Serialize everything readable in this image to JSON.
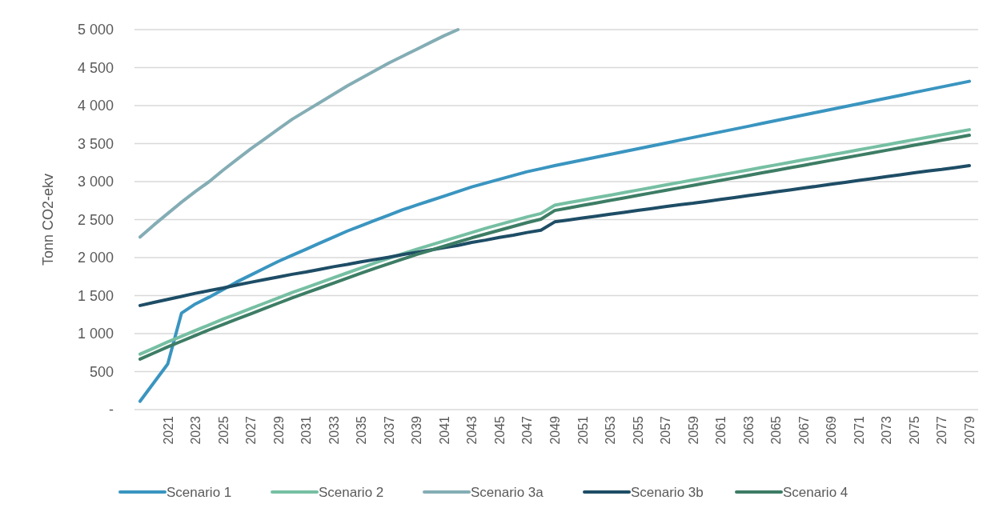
{
  "chart_data": {
    "type": "line",
    "ylabel": "Tonn CO2-ekv",
    "categories": [
      null,
      null,
      "2021",
      null,
      "2023",
      null,
      "2025",
      null,
      "2027",
      null,
      "2029",
      null,
      "2031",
      null,
      "2033",
      null,
      "2035",
      null,
      "2037",
      null,
      "2039",
      null,
      "2041",
      null,
      "2043",
      null,
      "2045",
      null,
      "2047",
      null,
      "2049",
      null,
      "2051",
      null,
      "2053",
      null,
      "2055",
      null,
      "2057",
      null,
      "2059",
      null,
      "2061",
      null,
      "2063",
      null,
      "2065",
      null,
      "2067",
      null,
      "2069",
      null,
      "2071",
      null,
      "2073",
      null,
      "2075",
      null,
      "2077",
      null,
      "2079"
    ],
    "series": [
      {
        "name": "Scenario 1",
        "color": "#3a95c0",
        "values": [
          110,
          355,
          600,
          1270,
          1390,
          1480,
          1580,
          1680,
          1770,
          1860,
          1950,
          2030,
          2110,
          2190,
          2270,
          2350,
          2420,
          2490,
          2560,
          2630,
          2690,
          2750,
          2810,
          2870,
          2930,
          2980,
          3030,
          3080,
          3130,
          3170,
          3210,
          3247,
          3284,
          3321,
          3358,
          3395,
          3432,
          3469,
          3506,
          3543,
          3580,
          3617,
          3654,
          3691,
          3728,
          3765,
          3802,
          3839,
          3876,
          3913,
          3950,
          3987,
          4024,
          4061,
          4098,
          4135,
          4172,
          4209,
          4246,
          4283,
          4320
        ]
      },
      {
        "name": "Scenario 2",
        "color": "#76bfa3",
        "values": [
          730,
          810,
          890,
          965,
          1040,
          1115,
          1190,
          1260,
          1330,
          1400,
          1470,
          1540,
          1605,
          1670,
          1735,
          1800,
          1865,
          1930,
          1990,
          2050,
          2110,
          2165,
          2220,
          2275,
          2330,
          2385,
          2435,
          2485,
          2535,
          2580,
          2690,
          2723,
          2756,
          2789,
          2822,
          2855,
          2888,
          2922,
          2955,
          2988,
          3021,
          3054,
          3087,
          3120,
          3153,
          3186,
          3220,
          3253,
          3286,
          3319,
          3352,
          3385,
          3418,
          3451,
          3484,
          3518,
          3551,
          3584,
          3617,
          3650,
          3683
        ]
      },
      {
        "name": "Scenario 3a",
        "color": "#84adb5",
        "values": [
          2270,
          2430,
          2580,
          2730,
          2870,
          3000,
          3150,
          3290,
          3430,
          3560,
          3690,
          3820,
          3930,
          4040,
          4150,
          4260,
          4360,
          4460,
          4560,
          4650,
          4740,
          4830,
          4920,
          5000,
          null,
          null,
          null,
          null,
          null,
          null,
          null,
          null,
          null,
          null,
          null,
          null,
          null,
          null,
          null,
          null,
          null,
          null,
          null,
          null,
          null,
          null,
          null,
          null,
          null,
          null,
          null,
          null,
          null,
          null,
          null,
          null,
          null,
          null,
          null,
          null,
          null
        ]
      },
      {
        "name": "Scenario 3b",
        "color": "#1e4d66",
        "values": [
          1370,
          1410,
          1450,
          1490,
          1530,
          1565,
          1600,
          1640,
          1675,
          1710,
          1745,
          1780,
          1810,
          1845,
          1880,
          1910,
          1945,
          1975,
          2005,
          2040,
          2070,
          2100,
          2130,
          2160,
          2200,
          2230,
          2265,
          2295,
          2330,
          2360,
          2470,
          2495,
          2520,
          2545,
          2570,
          2595,
          2620,
          2645,
          2670,
          2695,
          2715,
          2740,
          2765,
          2790,
          2815,
          2840,
          2865,
          2890,
          2915,
          2940,
          2965,
          2990,
          3015,
          3040,
          3065,
          3090,
          3115,
          3140,
          3160,
          3185,
          3210
        ]
      },
      {
        "name": "Scenario 4",
        "color": "#3d7d65",
        "values": [
          665,
          745,
          825,
          900,
          975,
          1050,
          1120,
          1190,
          1260,
          1330,
          1400,
          1470,
          1535,
          1600,
          1665,
          1730,
          1795,
          1860,
          1920,
          1980,
          2040,
          2095,
          2150,
          2205,
          2260,
          2310,
          2360,
          2410,
          2460,
          2505,
          2620,
          2653,
          2686,
          2719,
          2752,
          2785,
          2818,
          2851,
          2884,
          2917,
          2950,
          2983,
          3016,
          3049,
          3082,
          3115,
          3148,
          3181,
          3214,
          3247,
          3280,
          3313,
          3346,
          3379,
          3412,
          3445,
          3478,
          3511,
          3544,
          3577,
          3610
        ]
      }
    ],
    "ylim": [
      0,
      5000
    ],
    "yticks": [
      {
        "value": 0,
        "label": "-"
      },
      500,
      {
        "value": 1000,
        "label": "1 000"
      },
      {
        "value": 1500,
        "label": "1 500"
      },
      {
        "value": 2000,
        "label": "2 000"
      },
      {
        "value": 2500,
        "label": "2 500"
      },
      {
        "value": 3000,
        "label": "3 000"
      },
      {
        "value": 3500,
        "label": "3 500"
      },
      {
        "value": 4000,
        "label": "4 000"
      },
      {
        "value": 4500,
        "label": "4 500"
      },
      {
        "value": 5000,
        "label": "5 000"
      }
    ],
    "grid": "y",
    "legend": "bottom",
    "marker": "none",
    "line_style": "solid"
  }
}
